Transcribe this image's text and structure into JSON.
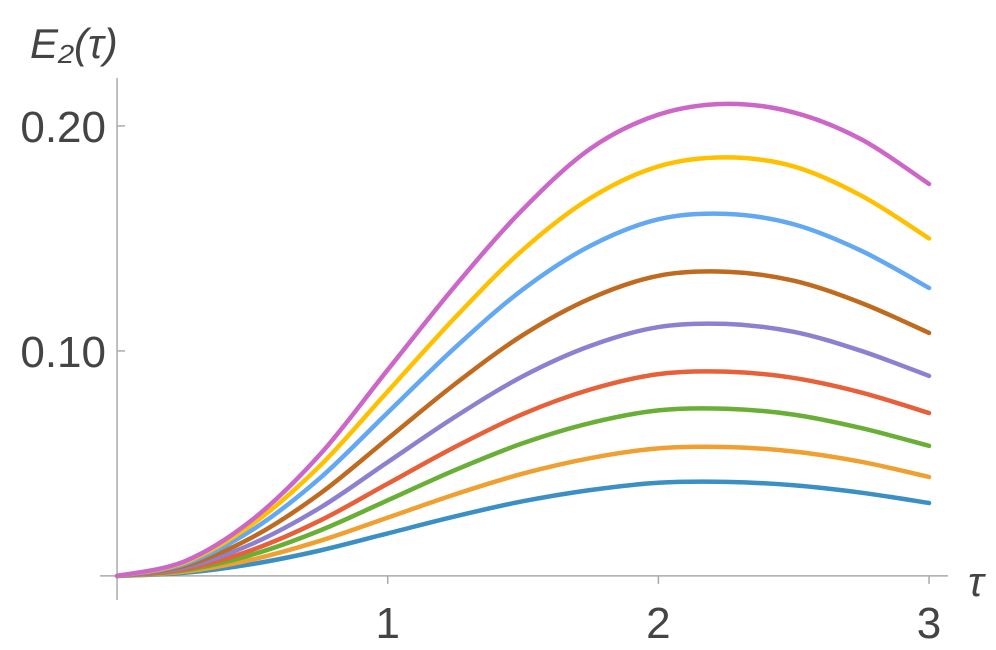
{
  "chart_data": {
    "type": "line",
    "y_label": "E₂(τ)",
    "x_label": "τ",
    "x": [
      0,
      0.25,
      0.5,
      0.75,
      1,
      1.25,
      1.5,
      1.75,
      2,
      2.25,
      2.5,
      2.75,
      3
    ],
    "series": [
      {
        "color": "#3a8fc4",
        "values": [
          0,
          0.0014,
          0.0053,
          0.0113,
          0.0189,
          0.0265,
          0.0332,
          0.0382,
          0.0414,
          0.0418,
          0.0403,
          0.037,
          0.0324
        ]
      },
      {
        "color": "#f0a030",
        "values": [
          0,
          0.0019,
          0.0073,
          0.0156,
          0.0259,
          0.0363,
          0.0455,
          0.0524,
          0.0567,
          0.0573,
          0.0553,
          0.0507,
          0.044
        ]
      },
      {
        "color": "#6aaf35",
        "values": [
          0,
          0.0025,
          0.0095,
          0.0202,
          0.0336,
          0.0471,
          0.059,
          0.068,
          0.0736,
          0.0743,
          0.0717,
          0.0657,
          0.0578
        ]
      },
      {
        "color": "#e8603a",
        "values": [
          0,
          0.003,
          0.0116,
          0.0246,
          0.041,
          0.0574,
          0.072,
          0.0829,
          0.0897,
          0.0908,
          0.088,
          0.0815,
          0.0724
        ]
      },
      {
        "color": "#8c80d0",
        "values": [
          0,
          0.0037,
          0.0143,
          0.0303,
          0.0506,
          0.0708,
          0.0888,
          0.1023,
          0.1106,
          0.112,
          0.1085,
          0.1,
          0.0889
        ]
      },
      {
        "color": "#c06a20",
        "values": [
          0,
          0.0045,
          0.0172,
          0.0366,
          0.061,
          0.0854,
          0.1071,
          0.1234,
          0.1334,
          0.1352,
          0.1312,
          0.1213,
          0.108
        ]
      },
      {
        "color": "#62a8f2",
        "values": [
          0,
          0.0053,
          0.0205,
          0.0435,
          0.0726,
          0.1016,
          0.1274,
          0.1468,
          0.1585,
          0.1609,
          0.1563,
          0.1445,
          0.128
        ]
      },
      {
        "color": "#ffc000",
        "values": [
          0,
          0.006,
          0.023,
          0.049,
          0.082,
          0.115,
          0.145,
          0.168,
          0.182,
          0.186,
          0.182,
          0.169,
          0.15
        ]
      },
      {
        "color": "#cc66c8",
        "values": [
          0,
          0.0065,
          0.025,
          0.054,
          0.0916,
          0.129,
          0.163,
          0.19,
          0.205,
          0.2098,
          0.206,
          0.194,
          0.1742
        ]
      }
    ],
    "xlim": [
      -0.063,
      3.07
    ],
    "ylim": [
      -0.0107,
      0.2213
    ],
    "xticks": [
      1,
      2,
      3
    ],
    "yticks": [
      {
        "value": 0.1,
        "label": "0.10"
      },
      {
        "value": 0.2,
        "label": "0.20"
      }
    ]
  }
}
